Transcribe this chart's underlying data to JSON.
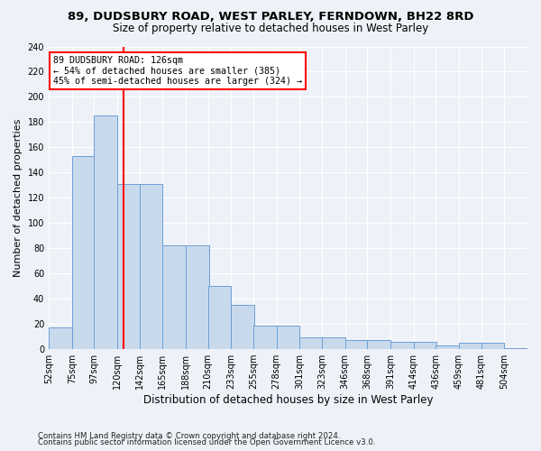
{
  "title1": "89, DUDSBURY ROAD, WEST PARLEY, FERNDOWN, BH22 8RD",
  "title2": "Size of property relative to detached houses in West Parley",
  "xlabel": "Distribution of detached houses by size in West Parley",
  "ylabel": "Number of detached properties",
  "bar_color": "#c9d9ec",
  "bar_edge_color": "#6a9fd8",
  "bar_edge_width": 0.7,
  "vline_color": "red",
  "vline_x_index": 3,
  "annotation_line1": "89 DUDSBURY ROAD: 126sqm",
  "annotation_line2": "← 54% of detached houses are smaller (385)",
  "annotation_line3": "45% of semi-detached houses are larger (324) →",
  "annotation_box_color": "white",
  "annotation_box_edge": "red",
  "footer1": "Contains HM Land Registry data © Crown copyright and database right 2024.",
  "footer2": "Contains public sector information licensed under the Open Government Licence v3.0.",
  "background_color": "#eef2f8",
  "grid_color": "#ffffff",
  "bin_left_edges": [
    52,
    75,
    97,
    120,
    142,
    165,
    188,
    210,
    233,
    255,
    278,
    301,
    323,
    346,
    368,
    391,
    414,
    436,
    459,
    481,
    504
  ],
  "bin_width": 23,
  "values": [
    17,
    153,
    185,
    131,
    131,
    82,
    82,
    50,
    35,
    19,
    19,
    9,
    9,
    7,
    7,
    6,
    6,
    3,
    5,
    5,
    1
  ],
  "tick_labels": [
    "52sqm",
    "75sqm",
    "97sqm",
    "120sqm",
    "142sqm",
    "165sqm",
    "188sqm",
    "210sqm",
    "233sqm",
    "255sqm",
    "278sqm",
    "301sqm",
    "323sqm",
    "346sqm",
    "368sqm",
    "391sqm",
    "414sqm",
    "436sqm",
    "459sqm",
    "481sqm",
    "504sqm"
  ],
  "ylim": [
    0,
    240
  ],
  "yticks": [
    0,
    20,
    40,
    60,
    80,
    100,
    120,
    140,
    160,
    180,
    200,
    220,
    240
  ],
  "title1_fontsize": 9.5,
  "title2_fontsize": 8.5,
  "xlabel_fontsize": 8.5,
  "ylabel_fontsize": 8.0,
  "tick_fontsize": 7.0,
  "footer_fontsize": 6.2
}
